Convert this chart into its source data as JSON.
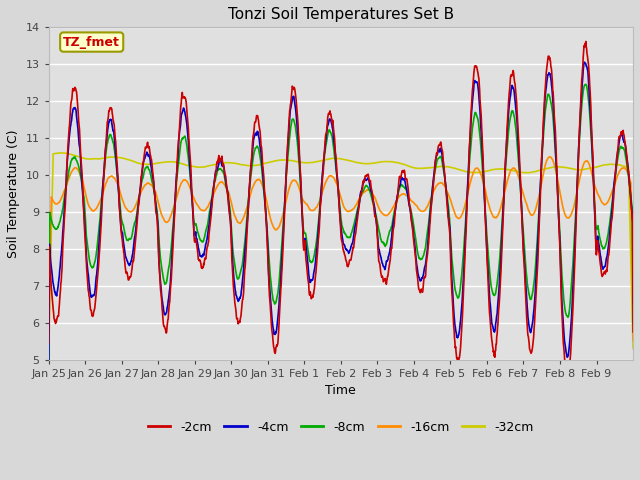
{
  "title": "Tonzi Soil Temperatures Set B",
  "xlabel": "Time",
  "ylabel": "Soil Temperature (C)",
  "ylim": [
    5.0,
    14.0
  ],
  "yticks": [
    5.0,
    6.0,
    7.0,
    8.0,
    9.0,
    10.0,
    11.0,
    12.0,
    13.0,
    14.0
  ],
  "xtick_labels": [
    "Jan 25",
    "Jan 26",
    "Jan 27",
    "Jan 28",
    "Jan 29",
    "Jan 30",
    "Jan 31",
    "Feb 1",
    "Feb 2",
    "Feb 3",
    "Feb 4",
    "Feb 5",
    "Feb 6",
    "Feb 7",
    "Feb 8",
    "Feb 9"
  ],
  "series_colors": [
    "#cc0000",
    "#0000cc",
    "#00aa00",
    "#ff8c00",
    "#cccc00"
  ],
  "series_labels": [
    "-2cm",
    "-4cm",
    "-8cm",
    "-16cm",
    "-32cm"
  ],
  "line_width": 1.2,
  "bg_color": "#d8d8d8",
  "plot_bg_color": "#e0e0e0",
  "annotation_text": "TZ_fmet",
  "annotation_bg": "#ffffcc",
  "annotation_border": "#999900",
  "annotation_text_color": "#cc0000",
  "grid_color": "#ffffff",
  "figsize": [
    6.4,
    4.8
  ],
  "dpi": 100
}
